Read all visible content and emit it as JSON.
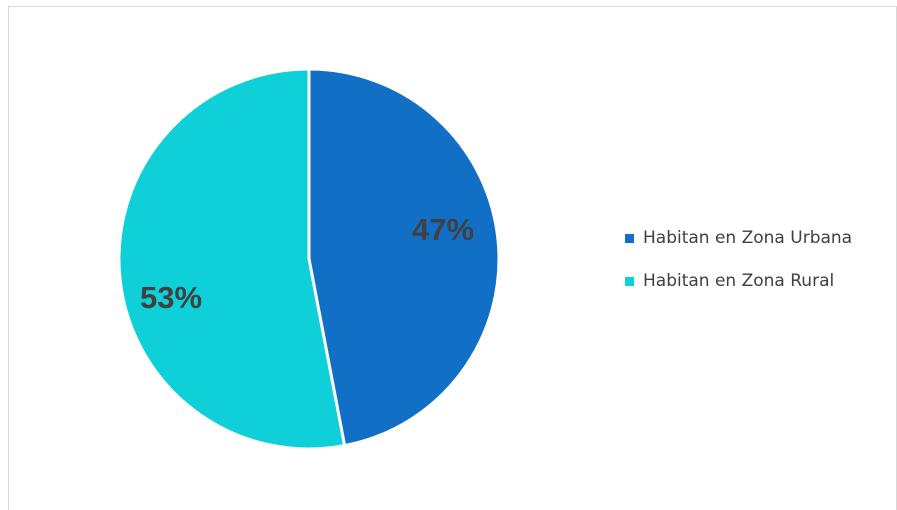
{
  "chart_data": {
    "type": "pie",
    "title": "",
    "series": [
      {
        "name": "Habitan en Zona Urbana",
        "value": 47,
        "label": "47%",
        "color": "#1170c6"
      },
      {
        "name": "Habitan en Zona Rural",
        "value": 53,
        "label": "53%",
        "color": "#0fcfd8"
      }
    ],
    "start_angle_deg": 0,
    "direction": "clockwise",
    "legend_placement": "right",
    "grid": false
  }
}
